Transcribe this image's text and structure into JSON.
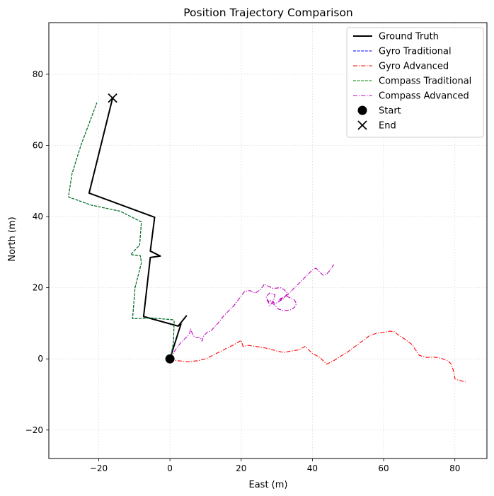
{
  "chart_data": {
    "type": "line",
    "title": "Position Trajectory Comparison",
    "xlabel": "East (m)",
    "ylabel": "North (m)",
    "xlim": [
      -34,
      89
    ],
    "ylim": [
      -28,
      94.5
    ],
    "xticks": [
      -20,
      0,
      20,
      40,
      60,
      80
    ],
    "yticks": [
      -20,
      0,
      20,
      40,
      60,
      80
    ],
    "xtick_labels": [
      "−20",
      "0",
      "20",
      "40",
      "60",
      "80"
    ],
    "ytick_labels": [
      "−20",
      "0",
      "20",
      "40",
      "60",
      "80"
    ],
    "grid": true,
    "legend_position": "top-right",
    "series": [
      {
        "name": "Ground Truth",
        "color": "#000000",
        "style": "solid",
        "x": [
          0,
          3.1,
          2.3,
          -7.4,
          -5.5,
          -2.7,
          -5.5,
          -4.3,
          -22.7,
          -16.1
        ],
        "y": [
          0,
          9.8,
          9.2,
          11.9,
          28.5,
          28.9,
          30.3,
          39.8,
          46.6,
          73.3
        ],
        "extra_segment": {
          "x": [
            2.3,
            4.7
          ],
          "y": [
            9.2,
            12.2
          ]
        }
      },
      {
        "name": "Gyro Traditional",
        "color": "#0000ff",
        "style": "dashed",
        "x": [
          0,
          0.4,
          0.8,
          1.0,
          1.2,
          0.8,
          -5.0,
          -10.5,
          -9.8,
          -8.0,
          -8.3,
          -11.0,
          -8.5,
          -8.0,
          -14.0,
          -22.0,
          -28.5,
          -27.5,
          -25.0,
          -23.5,
          -20.5
        ],
        "y": [
          0,
          1.5,
          3.5,
          5.0,
          10.5,
          11.0,
          11.5,
          11.3,
          20.0,
          27.0,
          29.0,
          29.3,
          32.0,
          38.5,
          41.5,
          43.2,
          45.5,
          52.0,
          60.0,
          64.0,
          72.0
        ]
      },
      {
        "name": "Gyro Advanced",
        "color": "#ff0000",
        "style": "dashdot",
        "x": [
          0,
          2.0,
          5.0,
          8.0,
          10.0,
          12.0,
          14.0,
          16.0,
          18.0,
          20.0,
          20.5,
          22.0,
          24.0,
          26.0,
          28.0,
          30.0,
          32.0,
          34.0,
          36.0,
          38.0,
          38.5,
          40.0,
          42.0,
          44.0,
          46.0,
          48.0,
          50.0,
          52.0,
          54.0,
          56.0,
          58.0,
          60.0,
          62.0,
          63.0,
          64.0,
          66.0,
          68.0,
          70.0,
          72.0,
          74.0,
          76.0,
          78.0,
          79.0,
          79.5,
          80.0,
          81.0,
          82.0,
          83.0
        ],
        "y": [
          0,
          -0.5,
          -0.8,
          -0.5,
          0,
          1.0,
          2.0,
          3.0,
          4.0,
          5.2,
          3.5,
          3.8,
          3.5,
          3.2,
          2.8,
          2.2,
          1.8,
          2.2,
          2.5,
          3.5,
          3.0,
          1.5,
          0.5,
          -1.5,
          -0.5,
          0.8,
          2.0,
          3.5,
          5.0,
          6.5,
          7.2,
          7.5,
          7.8,
          7.6,
          6.8,
          5.5,
          4.0,
          1.0,
          0.4,
          0.5,
          0.2,
          -0.5,
          -1.5,
          -3.0,
          -5.5,
          -6.0,
          -6.2,
          -6.5
        ]
      },
      {
        "name": "Compass Traditional",
        "color": "#008000",
        "style": "dashed",
        "x": [
          0,
          0.4,
          0.8,
          1.0,
          1.2,
          0.8,
          -5.0,
          -10.5,
          -9.8,
          -8.0,
          -8.3,
          -11.0,
          -8.5,
          -8.0,
          -14.0,
          -22.0,
          -28.5,
          -27.5,
          -25.0,
          -23.5,
          -20.5
        ],
        "y": [
          0,
          1.5,
          3.5,
          5.0,
          10.5,
          11.0,
          11.5,
          11.3,
          20.0,
          27.0,
          29.0,
          29.3,
          32.0,
          38.5,
          41.5,
          43.2,
          45.5,
          52.0,
          60.0,
          64.0,
          72.0
        ]
      },
      {
        "name": "Compass Advanced",
        "color": "#bf00bf",
        "style": "dashdot",
        "x": [
          0,
          1.5,
          3.0,
          4.5,
          5.5,
          5.8,
          6.5,
          7.5,
          8.5,
          9.0,
          9.5,
          10.5,
          11.5,
          12.5,
          13.5,
          15.0,
          16.5,
          18.0,
          19.5,
          21.0,
          22.5,
          24.0,
          25.5,
          26.5,
          27.5,
          29.0,
          31.0,
          32.0,
          33.0,
          32.0,
          30.5,
          29.5,
          28.5,
          27.5,
          27.0,
          28.0,
          29.5,
          29.0,
          28.0,
          27.5,
          29.0,
          30.5,
          32.0,
          34.0,
          35.0,
          35.5,
          35.0,
          33.0,
          31.0,
          30.5,
          31.5,
          33.0,
          34.5,
          36.0,
          37.5,
          39.0,
          40.0,
          41.0,
          42.0,
          43.0,
          44.0,
          45.0,
          46.0
        ],
        "y": [
          0,
          2.5,
          4.5,
          6.0,
          7.0,
          8.5,
          6.5,
          6.0,
          6.0,
          5.0,
          6.5,
          7.5,
          7.8,
          9.0,
          10.0,
          12.0,
          13.5,
          15.0,
          17.0,
          19.0,
          19.2,
          18.5,
          19.5,
          21.0,
          20.5,
          19.8,
          20.0,
          19.5,
          18.5,
          17.0,
          16.0,
          15.5,
          16.5,
          16.0,
          17.5,
          18.5,
          18.0,
          16.0,
          15.0,
          16.5,
          15.5,
          14.0,
          13.5,
          13.8,
          14.5,
          15.5,
          16.5,
          17.5,
          17.0,
          16.0,
          17.0,
          18.0,
          19.5,
          21.0,
          22.5,
          24.0,
          25.0,
          25.5,
          24.5,
          23.5,
          23.8,
          25.0,
          26.5
        ]
      }
    ],
    "markers": [
      {
        "name": "Start",
        "symbol": "circle",
        "x": 0,
        "y": 0,
        "color": "#000000"
      },
      {
        "name": "End",
        "symbol": "x",
        "x": -16.1,
        "y": 73.3,
        "color": "#000000"
      }
    ]
  }
}
